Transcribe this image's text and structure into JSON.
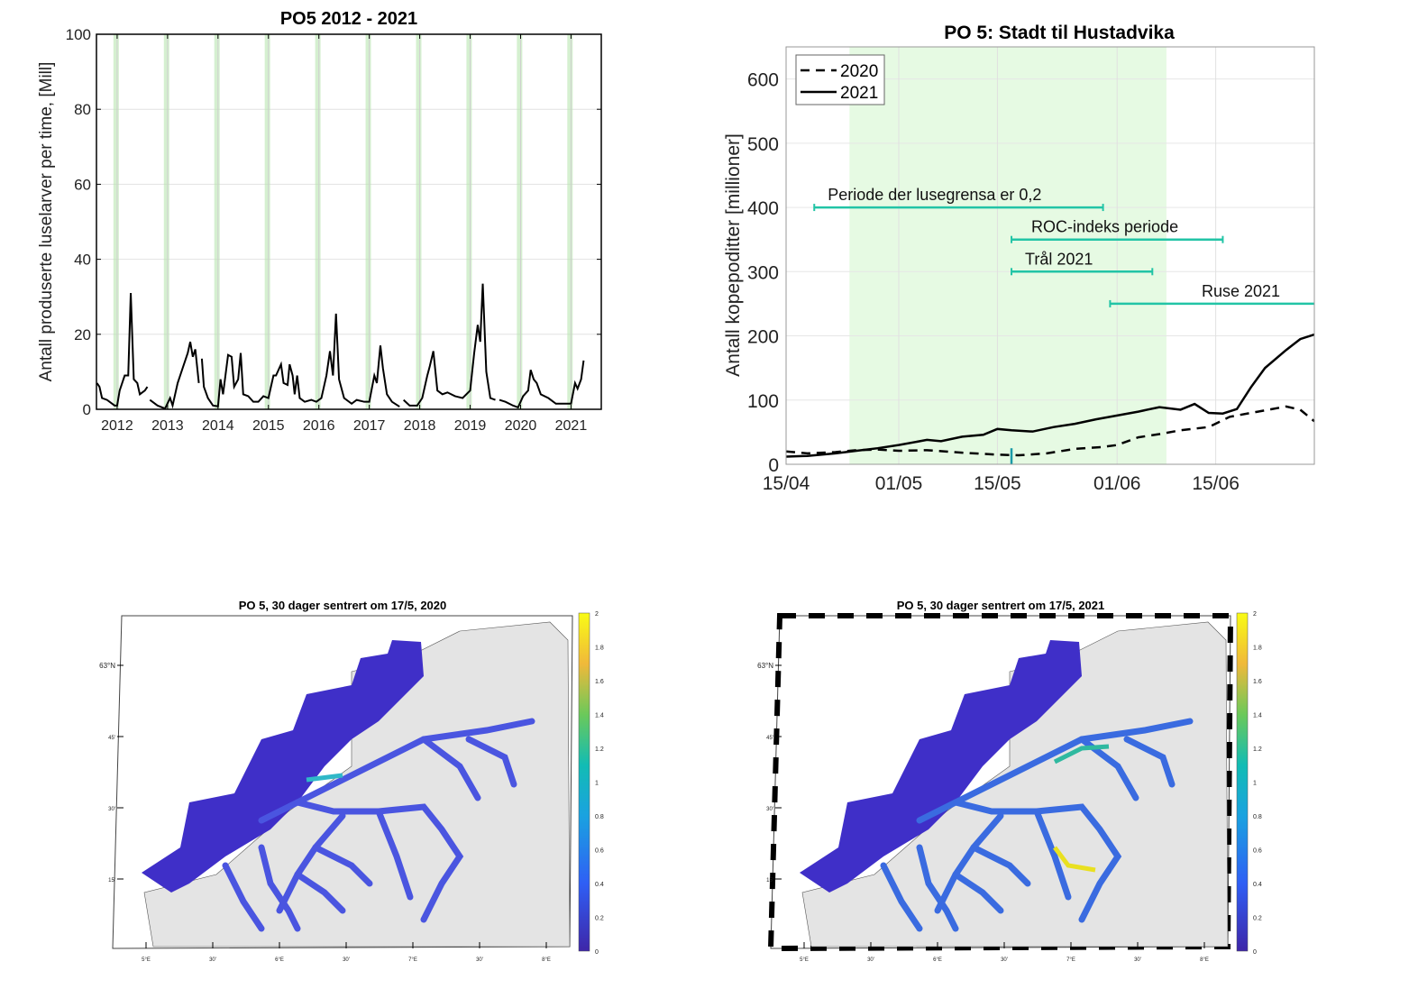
{
  "chart_data": [
    {
      "type": "line",
      "title": "PO5 2012 - 2021",
      "xlabel": "",
      "ylabel": "Antall produserte luselarver per time, [Mill]",
      "xlim": [
        2011.59,
        2021.6
      ],
      "ylim": [
        0,
        100
      ],
      "yticks": [
        0,
        20,
        40,
        60,
        80,
        100
      ],
      "xticks": [
        2012,
        2013,
        2014,
        2015,
        2016,
        2017,
        2018,
        2019,
        2020,
        2021
      ],
      "grid": true,
      "highlight_color": "#b9e6b0",
      "year_markers": [
        2011.98,
        2012.98,
        2013.98,
        2014.98,
        2015.98,
        2016.98,
        2017.98,
        2018.98,
        2019.98,
        2020.98
      ],
      "series": [
        {
          "color": "#000000",
          "segments": [
            [
              [
                2011.6,
                7
              ],
              [
                2011.65,
                6
              ],
              [
                2011.7,
                3
              ],
              [
                2011.8,
                2.5
              ],
              [
                2011.95,
                1
              ],
              [
                2012.0,
                1
              ],
              [
                2012.05,
                5
              ],
              [
                2012.15,
                9
              ],
              [
                2012.22,
                9
              ],
              [
                2012.27,
                31
              ],
              [
                2012.33,
                8
              ],
              [
                2012.4,
                7
              ],
              [
                2012.45,
                4
              ],
              [
                2012.55,
                5
              ],
              [
                2012.6,
                6
              ]
            ],
            [
              [
                2012.65,
                2.5
              ],
              [
                2012.8,
                1
              ],
              [
                2012.95,
                0.2
              ],
              [
                2013.05,
                3
              ],
              [
                2013.1,
                1
              ],
              [
                2013.2,
                7
              ],
              [
                2013.3,
                11
              ],
              [
                2013.4,
                15
              ],
              [
                2013.45,
                18
              ],
              [
                2013.5,
                14
              ],
              [
                2013.55,
                16
              ],
              [
                2013.62,
                7
              ]
            ],
            [
              [
                2013.68,
                13.5
              ],
              [
                2013.72,
                6
              ],
              [
                2013.8,
                3
              ],
              [
                2013.9,
                1
              ],
              [
                2014.0,
                0.8
              ],
              [
                2014.05,
                8
              ],
              [
                2014.1,
                4
              ],
              [
                2014.2,
                14.5
              ],
              [
                2014.27,
                14
              ],
              [
                2014.32,
                6
              ],
              [
                2014.4,
                8
              ],
              [
                2014.45,
                15
              ],
              [
                2014.5,
                4
              ],
              [
                2014.6,
                3.5
              ],
              [
                2014.7,
                2
              ],
              [
                2014.8,
                2
              ],
              [
                2014.9,
                3.5
              ],
              [
                2015.0,
                3
              ],
              [
                2015.1,
                9
              ],
              [
                2015.15,
                9
              ],
              [
                2015.25,
                12
              ],
              [
                2015.3,
                7
              ],
              [
                2015.38,
                6.5
              ],
              [
                2015.42,
                12
              ],
              [
                2015.48,
                9
              ],
              [
                2015.52,
                4
              ],
              [
                2015.57,
                9
              ],
              [
                2015.62,
                3
              ],
              [
                2015.72,
                2
              ],
              [
                2015.85,
                2.5
              ],
              [
                2015.95,
                2
              ],
              [
                2016.05,
                3
              ],
              [
                2016.15,
                9
              ],
              [
                2016.22,
                15.5
              ],
              [
                2016.28,
                9
              ],
              [
                2016.34,
                25.5
              ],
              [
                2016.4,
                8
              ],
              [
                2016.5,
                3
              ],
              [
                2016.65,
                1.5
              ],
              [
                2016.75,
                2.5
              ],
              [
                2016.9,
                2
              ],
              [
                2017.0,
                2
              ],
              [
                2017.1,
                9
              ],
              [
                2017.15,
                7
              ],
              [
                2017.22,
                17
              ],
              [
                2017.27,
                11
              ],
              [
                2017.35,
                4
              ],
              [
                2017.45,
                2
              ],
              [
                2017.6,
                0.7
              ]
            ],
            [
              [
                2017.68,
                2.5
              ],
              [
                2017.8,
                1
              ],
              [
                2017.95,
                1
              ],
              [
                2018.05,
                3
              ],
              [
                2018.15,
                9
              ],
              [
                2018.2,
                11.5
              ],
              [
                2018.27,
                15.5
              ],
              [
                2018.35,
                5
              ],
              [
                2018.45,
                4
              ],
              [
                2018.55,
                4.5
              ],
              [
                2018.7,
                3.5
              ],
              [
                2018.85,
                3
              ],
              [
                2019.0,
                5
              ],
              [
                2019.08,
                15
              ],
              [
                2019.15,
                22.5
              ],
              [
                2019.2,
                18
              ],
              [
                2019.25,
                33.5
              ],
              [
                2019.32,
                10
              ],
              [
                2019.4,
                3
              ],
              [
                2019.5,
                2.5
              ]
            ],
            [
              [
                2019.58,
                2.5
              ],
              [
                2019.7,
                2
              ],
              [
                2019.85,
                1
              ],
              [
                2019.95,
                0.5
              ],
              [
                2020.05,
                3.5
              ],
              [
                2020.15,
                5
              ],
              [
                2020.2,
                10.5
              ],
              [
                2020.26,
                8
              ],
              [
                2020.32,
                7
              ],
              [
                2020.4,
                4
              ],
              [
                2020.55,
                3
              ],
              [
                2020.7,
                1.5
              ],
              [
                2020.9,
                1.5
              ],
              [
                2021.0,
                1.5
              ],
              [
                2021.08,
                7
              ],
              [
                2021.13,
                5.5
              ],
              [
                2021.2,
                8
              ],
              [
                2021.25,
                13
              ]
            ]
          ]
        }
      ]
    },
    {
      "type": "line",
      "title": "PO 5: Stadt til Hustadvika",
      "xlabel": "",
      "ylabel": "Antall kopepoditter [millioner]",
      "xlim": [
        "15/04",
        "29/06"
      ],
      "ylim": [
        0,
        650
      ],
      "yticks": [
        0,
        100,
        200,
        300,
        400,
        500,
        600
      ],
      "xticks": [
        "15/04",
        "01/05",
        "15/05",
        "01/06",
        "15/06"
      ],
      "grid": true,
      "legend": "top-left",
      "shaded_period": {
        "from": "24/04",
        "to": "08/06",
        "color": "#e6fae3"
      },
      "marker": {
        "date": "17/05",
        "from": 0,
        "to": 25,
        "color": "#1a9aa8"
      },
      "intervals": [
        {
          "label": "Periode der lusegrensa er 0,2",
          "from": "19/04",
          "to": "30/05",
          "y": 400
        },
        {
          "label": "ROC-indeks periode",
          "from": "17/05",
          "to": "16/06",
          "y": 350
        },
        {
          "label": "Trål 2021",
          "from": "17/05",
          "to": "06/06",
          "y": 300
        },
        {
          "label": "Ruse 2021",
          "from": "31/05",
          "to": "29/06",
          "y": 250
        }
      ],
      "interval_color": "#22c4a6",
      "series": [
        {
          "name": "2020",
          "style": "dashed",
          "points": [
            [
              "15/04",
              20
            ],
            [
              "18/04",
              17
            ],
            [
              "22/04",
              19
            ],
            [
              "25/04",
              22
            ],
            [
              "28/04",
              23
            ],
            [
              "01/05",
              21
            ],
            [
              "05/05",
              22
            ],
            [
              "10/05",
              18
            ],
            [
              "15/05",
              15
            ],
            [
              "18/05",
              14
            ],
            [
              "22/05",
              17
            ],
            [
              "26/05",
              24
            ],
            [
              "30/05",
              27
            ],
            [
              "01/06",
              30
            ],
            [
              "04/06",
              42
            ],
            [
              "07/06",
              47
            ],
            [
              "10/06",
              53
            ],
            [
              "14/06",
              58
            ],
            [
              "17/06",
              74
            ],
            [
              "21/06",
              82
            ],
            [
              "25/06",
              90
            ],
            [
              "27/06",
              85
            ],
            [
              "29/06",
              67
            ]
          ]
        },
        {
          "name": "2021",
          "style": "solid",
          "points": [
            [
              "15/04",
              12
            ],
            [
              "18/04",
              13
            ],
            [
              "22/04",
              17
            ],
            [
              "25/04",
              21
            ],
            [
              "28/04",
              25
            ],
            [
              "01/05",
              30
            ],
            [
              "05/05",
              38
            ],
            [
              "07/05",
              36
            ],
            [
              "10/05",
              43
            ],
            [
              "13/05",
              46
            ],
            [
              "15/05",
              55
            ],
            [
              "17/05",
              53
            ],
            [
              "20/05",
              51
            ],
            [
              "23/05",
              58
            ],
            [
              "26/05",
              63
            ],
            [
              "29/05",
              70
            ],
            [
              "01/06",
              76
            ],
            [
              "04/06",
              82
            ],
            [
              "07/06",
              89
            ],
            [
              "10/06",
              85
            ],
            [
              "12/06",
              94
            ],
            [
              "14/06",
              80
            ],
            [
              "16/06",
              79
            ],
            [
              "18/06",
              86
            ],
            [
              "20/06",
              120
            ],
            [
              "22/06",
              150
            ],
            [
              "25/06",
              178
            ],
            [
              "27/06",
              195
            ],
            [
              "29/06",
              202
            ]
          ]
        }
      ]
    },
    {
      "type": "heatmap",
      "title": "PO 5, 30 dager sentrert om 17/5, 2020",
      "lon_ticks": [
        "5°E",
        "30'",
        "6°E",
        "30'",
        "7°E",
        "30'",
        "8°E"
      ],
      "lat_ticks": [
        "63°N",
        "45'",
        "30'",
        "15'"
      ],
      "colorbar": {
        "min": 0,
        "max": 2,
        "ticks": [
          "0",
          "0.2",
          "0.4",
          "0.6",
          "0.8",
          "1",
          "1.2",
          "1.4",
          "1.6",
          "1.8",
          "2"
        ],
        "colormap": "parula"
      },
      "land_color": "#e4e4e4"
    },
    {
      "type": "heatmap",
      "title": "PO 5, 30 dager sentrert om 17/5, 2021",
      "lon_ticks": [
        "5°E",
        "30'",
        "6°E",
        "30'",
        "7°E",
        "30'",
        "8°E"
      ],
      "lat_ticks": [
        "63°N",
        "45'",
        "30'",
        "15'"
      ],
      "colorbar": {
        "min": 0,
        "max": 2,
        "ticks": [
          "0",
          "0.2",
          "0.4",
          "0.6",
          "0.8",
          "1",
          "1.2",
          "1.4",
          "1.6",
          "1.8",
          "2"
        ],
        "colormap": "parula"
      },
      "land_color": "#e4e4e4"
    }
  ]
}
